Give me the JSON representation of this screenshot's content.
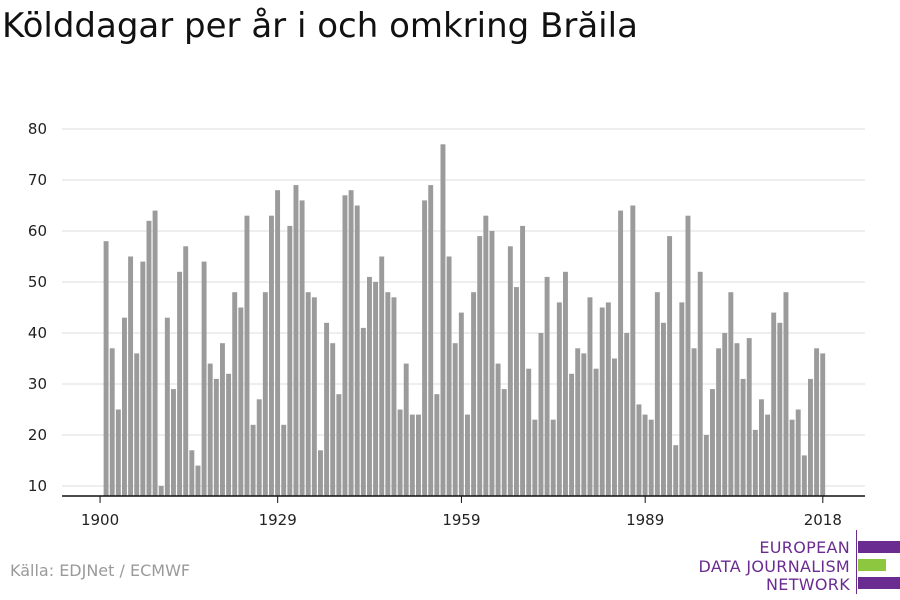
{
  "title": "Kölddagar per år i och omkring Brăila",
  "source": "Källa: EDJNet / ECMWF",
  "logo": {
    "lines": [
      "EUROPEAN",
      "DATA JOURNALISM",
      "NETWORK"
    ],
    "colors": {
      "primary": "#6b2c91",
      "accent": "#8dc63f"
    }
  },
  "colors": {
    "bar": "#9b9b9b",
    "grid": "#dddddd",
    "axis": "#111111",
    "text": "#222222"
  },
  "chart_data": {
    "type": "bar",
    "title": "Kölddagar per år i och omkring Brăila",
    "xlabel": "",
    "ylabel": "",
    "ylim": [
      8,
      82
    ],
    "yticks": [
      10,
      20,
      30,
      40,
      50,
      60,
      70,
      80
    ],
    "xticks": [
      1900,
      1929,
      1959,
      1989,
      2018
    ],
    "grid": true,
    "legend": "none",
    "x": [
      1900,
      1901,
      1902,
      1903,
      1904,
      1905,
      1906,
      1907,
      1908,
      1909,
      1910,
      1911,
      1912,
      1913,
      1914,
      1915,
      1916,
      1917,
      1918,
      1919,
      1920,
      1921,
      1922,
      1923,
      1924,
      1925,
      1926,
      1927,
      1928,
      1929,
      1930,
      1931,
      1932,
      1933,
      1934,
      1935,
      1936,
      1937,
      1938,
      1939,
      1940,
      1941,
      1942,
      1943,
      1944,
      1945,
      1946,
      1947,
      1948,
      1949,
      1950,
      1951,
      1952,
      1953,
      1954,
      1955,
      1956,
      1957,
      1958,
      1959,
      1960,
      1961,
      1962,
      1963,
      1964,
      1965,
      1966,
      1967,
      1968,
      1969,
      1970,
      1971,
      1972,
      1973,
      1974,
      1975,
      1976,
      1977,
      1978,
      1979,
      1980,
      1981,
      1982,
      1983,
      1984,
      1985,
      1986,
      1987,
      1988,
      1989,
      1990,
      1991,
      1992,
      1993,
      1994,
      1995,
      1996,
      1997,
      1998,
      1999,
      2000,
      2001,
      2002,
      2003,
      2004,
      2005,
      2006,
      2007,
      2008,
      2009,
      2010,
      2011,
      2012,
      2013,
      2014,
      2015,
      2016,
      2017,
      2018,
      2019
    ],
    "values": [
      8,
      58,
      37,
      25,
      43,
      55,
      36,
      54,
      62,
      64,
      10,
      43,
      29,
      52,
      57,
      17,
      14,
      54,
      34,
      31,
      38,
      32,
      48,
      45,
      63,
      22,
      27,
      48,
      63,
      68,
      22,
      61,
      69,
      66,
      48,
      47,
      17,
      42,
      38,
      28,
      67,
      68,
      65,
      41,
      51,
      50,
      55,
      48,
      47,
      25,
      34,
      24,
      24,
      66,
      69,
      28,
      77,
      55,
      38,
      44,
      24,
      48,
      59,
      63,
      60,
      34,
      29,
      57,
      49,
      61,
      33,
      23,
      40,
      51,
      23,
      46,
      52,
      32,
      37,
      36,
      47,
      33,
      45,
      46,
      35,
      64,
      40,
      65,
      26,
      24,
      23,
      48,
      42,
      59,
      18,
      46,
      63,
      37,
      52,
      20,
      29,
      37,
      40,
      48,
      38,
      31,
      39,
      21,
      27,
      24,
      44,
      42,
      48,
      23,
      25,
      16,
      31,
      37,
      36,
      8
    ]
  }
}
